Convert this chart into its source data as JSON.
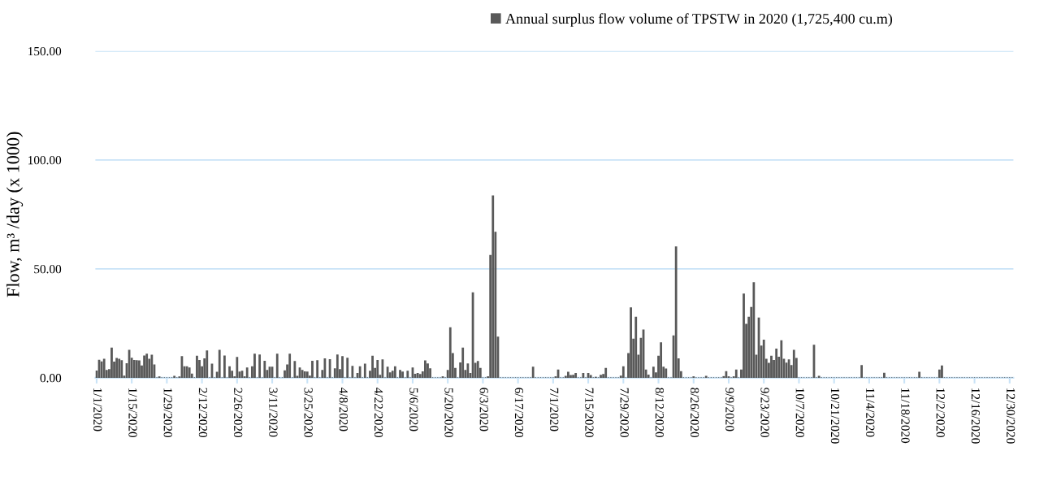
{
  "chart_data": {
    "type": "bar",
    "ylabel": "Flow, m³ /day (x 1000)",
    "ylim": [
      0,
      150
    ],
    "yticks": [
      {
        "value": 0,
        "label": "0.00"
      },
      {
        "value": 50,
        "label": "50.00"
      },
      {
        "value": 100,
        "label": "100.00"
      },
      {
        "value": 150,
        "label": "150.00"
      }
    ],
    "grid": "y",
    "legend": "top",
    "categories": [
      "1/1/2020",
      null,
      null,
      null,
      null,
      null,
      null,
      null,
      null,
      null,
      null,
      null,
      null,
      null,
      "1/15/2020",
      null,
      null,
      null,
      null,
      null,
      null,
      null,
      null,
      null,
      null,
      null,
      null,
      null,
      "1/29/2020",
      null,
      null,
      null,
      null,
      null,
      null,
      null,
      null,
      null,
      null,
      null,
      null,
      null,
      "2/12/2020",
      null,
      null,
      null,
      null,
      null,
      null,
      null,
      null,
      null,
      null,
      null,
      null,
      null,
      "2/26/2020",
      null,
      null,
      null,
      null,
      null,
      null,
      null,
      null,
      null,
      null,
      null,
      null,
      null,
      "3/11/2020",
      null,
      null,
      null,
      null,
      null,
      null,
      null,
      null,
      null,
      null,
      null,
      null,
      null,
      "3/25/2020",
      null,
      null,
      null,
      null,
      null,
      null,
      null,
      null,
      null,
      null,
      null,
      null,
      null,
      "4/8/2020",
      null,
      null,
      null,
      null,
      null,
      null,
      null,
      null,
      null,
      null,
      null,
      null,
      null,
      "4/22/2020",
      null,
      null,
      null,
      null,
      null,
      null,
      null,
      null,
      null,
      null,
      null,
      null,
      null,
      "5/6/2020",
      null,
      null,
      null,
      null,
      null,
      null,
      null,
      null,
      null,
      null,
      null,
      null,
      null,
      "5/20/2020",
      null,
      null,
      null,
      null,
      null,
      null,
      null,
      null,
      null,
      null,
      null,
      null,
      null,
      "6/3/2020",
      null,
      null,
      null,
      null,
      null,
      null,
      null,
      null,
      null,
      null,
      null,
      null,
      null,
      "6/17/2020",
      null,
      null,
      null,
      null,
      null,
      null,
      null,
      null,
      null,
      null,
      null,
      null,
      null,
      "7/1/2020",
      null,
      null,
      null,
      null,
      null,
      null,
      null,
      null,
      null,
      null,
      null,
      null,
      null,
      "7/15/2020",
      null,
      null,
      null,
      null,
      null,
      null,
      null,
      null,
      null,
      null,
      null,
      null,
      null,
      "7/29/2020",
      null,
      null,
      null,
      null,
      null,
      null,
      null,
      null,
      null,
      null,
      null,
      null,
      null,
      "8/12/2020",
      null,
      null,
      null,
      null,
      null,
      null,
      null,
      null,
      null,
      null,
      null,
      null,
      null,
      "8/26/2020",
      null,
      null,
      null,
      null,
      null,
      null,
      null,
      null,
      null,
      null,
      null,
      null,
      null,
      "9/9/2020",
      null,
      null,
      null,
      null,
      null,
      null,
      null,
      null,
      null,
      null,
      null,
      null,
      null,
      "9/23/2020",
      null,
      null,
      null,
      null,
      null,
      null,
      null,
      null,
      null,
      null,
      null,
      null,
      null,
      "10/7/2020",
      null,
      null,
      null,
      null,
      null,
      null,
      null,
      null,
      null,
      null,
      null,
      null,
      null,
      "10/21/2020",
      null,
      null,
      null,
      null,
      null,
      null,
      null,
      null,
      null,
      null,
      null,
      null,
      null,
      "11/4/2020",
      null,
      null,
      null,
      null,
      null,
      null,
      null,
      null,
      null,
      null,
      null,
      null,
      null,
      "11/18/2020",
      null,
      null,
      null,
      null,
      null,
      null,
      null,
      null,
      null,
      null,
      null,
      null,
      null,
      "12/2/2020",
      null,
      null,
      null,
      null,
      null,
      null,
      null,
      null,
      null,
      null,
      null,
      null,
      null,
      "12/16/2020",
      null,
      null,
      null,
      null,
      null,
      null,
      null,
      null,
      null,
      null,
      null,
      null,
      null,
      "12/30/2020",
      null
    ],
    "series": [
      {
        "name": "Annual surplus flow volume of TPSTW in 2020 (1,725,400 cu.m)",
        "color": "#595959",
        "values": [
          3.1,
          8.0,
          7.3,
          8.5,
          3.3,
          3.7,
          13.6,
          7.2,
          8.8,
          8.5,
          7.8,
          0.7,
          6.4,
          12.6,
          8.9,
          7.9,
          7.8,
          7.7,
          5.4,
          10.0,
          10.8,
          8.5,
          10.3,
          5.9,
          0,
          0.4,
          0,
          0,
          0,
          0,
          0,
          0.6,
          0,
          0.4,
          9.7,
          5.0,
          5.0,
          4.5,
          1.7,
          0,
          9.9,
          7.9,
          5.0,
          8.7,
          12.3,
          0,
          6.2,
          0,
          2.5,
          12.6,
          0,
          10.0,
          0,
          5.0,
          3.0,
          0.4,
          9.3,
          2.6,
          3.0,
          0.4,
          4.5,
          0,
          5.0,
          10.8,
          0,
          10.4,
          0,
          7.5,
          3.3,
          4.8,
          4.8,
          0,
          10.8,
          0,
          0,
          3.2,
          5.9,
          10.8,
          0,
          7.4,
          0.6,
          4.5,
          3.3,
          2.7,
          2.6,
          0.7,
          7.5,
          0,
          7.8,
          0,
          3.3,
          8.7,
          0,
          8.3,
          0,
          4.1,
          10.4,
          3.7,
          9.7,
          0,
          8.9,
          0,
          5.2,
          0,
          1.9,
          5.0,
          0,
          6.2,
          0,
          3.0,
          9.9,
          4.3,
          7.9,
          1.1,
          8.2,
          0,
          4.8,
          2.2,
          3.0,
          5.0,
          0,
          3.3,
          2.6,
          0,
          3.0,
          0,
          4.5,
          1.6,
          1.9,
          1.5,
          2.7,
          7.7,
          6.3,
          4.1,
          0,
          0,
          0,
          0,
          0.4,
          0,
          3.3,
          22.9,
          11.1,
          4.3,
          0,
          6.8,
          13.6,
          3.3,
          6.3,
          1.9,
          39.0,
          6.6,
          7.4,
          4.3,
          0,
          0,
          0.4,
          56.1,
          83.5,
          66.8,
          18.6,
          0,
          0,
          0,
          0,
          0,
          0,
          0,
          0,
          0,
          0,
          0,
          0,
          0,
          4.8,
          0,
          0,
          0,
          0,
          0,
          0,
          0,
          0,
          0.4,
          3.5,
          0,
          0,
          0.6,
          2.5,
          1.0,
          1.1,
          1.9,
          0,
          0,
          1.9,
          0,
          1.9,
          1.0,
          0,
          0.2,
          0,
          1.1,
          1.5,
          4.3,
          0,
          0,
          0,
          0,
          0,
          0.7,
          5.0,
          0,
          11.1,
          32.1,
          17.7,
          27.8,
          10.3,
          18.1,
          21.9,
          3.5,
          1.2,
          0,
          4.8,
          2.2,
          9.9,
          16.0,
          4.8,
          4.0,
          0,
          0,
          19.2,
          60.0,
          8.7,
          2.8,
          0,
          0,
          0,
          0,
          0.4,
          0,
          0,
          0,
          0,
          0.6,
          0,
          0,
          0,
          0,
          0,
          0,
          0.5,
          2.8,
          0.4,
          0,
          0.4,
          3.5,
          0,
          3.5,
          38.4,
          24.5,
          27.8,
          32.3,
          43.6,
          10.3,
          27.4,
          14.5,
          17.2,
          8.5,
          6.6,
          9.9,
          7.9,
          13.1,
          9.4,
          17.0,
          8.5,
          6.7,
          8.2,
          5.6,
          12.6,
          8.8,
          0,
          0,
          0,
          0,
          0,
          0,
          14.9,
          0,
          0.6,
          0,
          0,
          0,
          0,
          0,
          0,
          0,
          0,
          0,
          0,
          0,
          0,
          0,
          0,
          0,
          0,
          5.6,
          0,
          0,
          0,
          0,
          0,
          0,
          0,
          0,
          2.0,
          0,
          0,
          0,
          0,
          0,
          0,
          0,
          0,
          0,
          0,
          0,
          0,
          0,
          2.5,
          0,
          0,
          0,
          0,
          0,
          0,
          0,
          3.5,
          5.4,
          0,
          0,
          0,
          0,
          0,
          0,
          0,
          0,
          0,
          0,
          0,
          0,
          0,
          0,
          0,
          0,
          0,
          0,
          0,
          0,
          0,
          0,
          0,
          0,
          0,
          0,
          0,
          0
        ]
      }
    ]
  }
}
